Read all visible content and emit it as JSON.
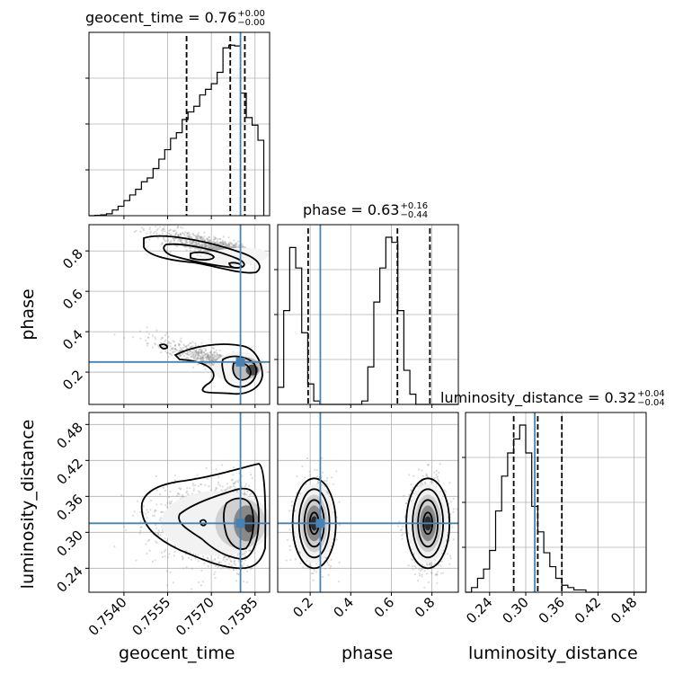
{
  "chart_data": {
    "type": "corner",
    "parameters": [
      "geocent_time",
      "phase",
      "luminosity_distance"
    ],
    "truths": {
      "geocent_time": 0.758,
      "phase": 0.25,
      "luminosity_distance": 0.315
    },
    "titles": [
      {
        "param": "geocent_time",
        "text": "geocent_time = 0.76",
        "plus": "+0.00",
        "minus": "−0.00"
      },
      {
        "param": "phase",
        "text": "phase = 0.63",
        "plus": "+0.16",
        "minus": "−0.44"
      },
      {
        "param": "luminosity_distance",
        "text": "luminosity_distance = 0.32",
        "plus": "+0.04",
        "minus": "−0.04"
      }
    ],
    "axis_labels": {
      "geocent_time": "geocent_time",
      "phase": "phase",
      "luminosity_distance": "luminosity_distance"
    },
    "ranges": {
      "geocent_time": [
        0.7528,
        0.759
      ],
      "phase": [
        0.04,
        0.93
      ],
      "luminosity_distance": [
        0.2,
        0.5
      ]
    },
    "ticks": {
      "geocent_time": {
        "values": [
          0.754,
          0.7555,
          0.757,
          0.7585
        ],
        "labels": [
          "0.7540",
          "0.7555",
          "0.7570",
          "0.7585"
        ]
      },
      "phase": {
        "values": [
          0.2,
          0.4,
          0.6,
          0.8
        ],
        "labels": [
          "0.2",
          "0.4",
          "0.6",
          "0.8"
        ]
      },
      "luminosity_distance": {
        "values": [
          0.24,
          0.3,
          0.36,
          0.42,
          0.48
        ],
        "labels": [
          "0.24",
          "0.30",
          "0.36",
          "0.42",
          "0.48"
        ]
      }
    },
    "quantiles": {
      "geocent_time": [
        0.75615,
        0.75765,
        0.75815
      ],
      "phase": [
        0.19,
        0.63,
        0.79
      ],
      "luminosity_distance": [
        0.28,
        0.32,
        0.36
      ]
    },
    "histograms": {
      "geocent_time": {
        "edges_start": 0.7528,
        "bin_width": 0.0002,
        "counts": [
          0,
          1,
          2,
          5,
          15,
          25,
          40,
          55,
          70,
          90,
          100,
          125,
          150,
          175,
          205,
          220,
          255,
          275,
          290,
          320,
          335,
          350,
          380,
          445,
          452,
          450,
          325,
          260,
          240,
          200
        ]
      },
      "phase": {
        "edges_start": 0.04,
        "bin_width": 0.0296,
        "counts": [
          0.1,
          0.55,
          0.92,
          0.8,
          0.42,
          0.12,
          0.02,
          0,
          0,
          0,
          0,
          0,
          0,
          0,
          0.02,
          0.22,
          0.6,
          0.8,
          0.98,
          0.95,
          0.55,
          0.2,
          0.06,
          0,
          0,
          0,
          0,
          0,
          0,
          0
        ]
      },
      "luminosity_distance": {
        "edges_start": 0.2,
        "bin_width": 0.01,
        "counts": [
          0,
          2,
          6,
          10,
          18,
          35,
          50,
          60,
          66,
          72,
          60,
          37,
          26,
          17,
          11,
          6,
          3,
          2,
          1,
          1,
          0,
          0,
          0,
          0,
          0,
          0,
          0,
          0,
          0,
          0
        ]
      }
    },
    "grid": true
  }
}
